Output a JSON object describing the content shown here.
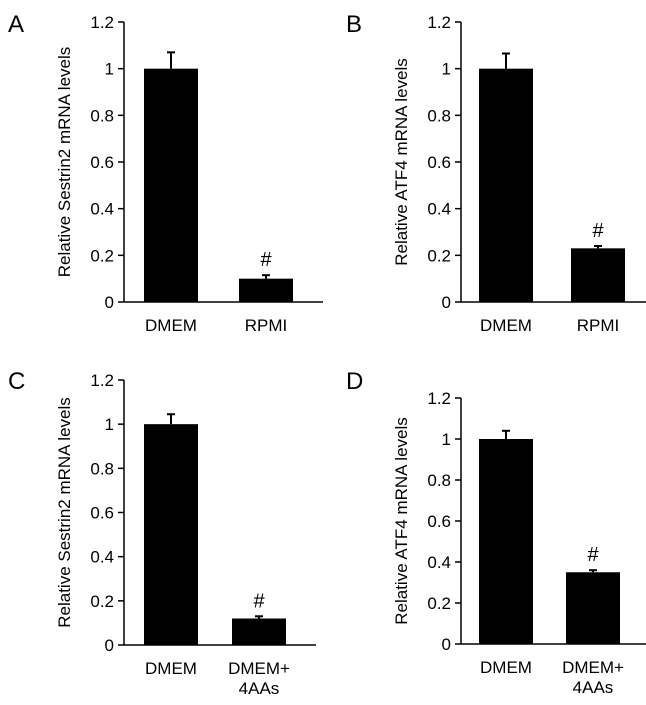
{
  "chart_data": [
    {
      "panel": "A",
      "type": "bar",
      "categories": [
        [
          "DMEM"
        ],
        [
          "RPMI"
        ]
      ],
      "values": [
        1.0,
        0.1
      ],
      "errors": [
        0.07,
        0.015
      ],
      "annotations": [
        "",
        "#"
      ],
      "ylabel": "Relative Sestrin2 mRNA levels",
      "ylim": [
        0,
        1.2
      ],
      "yticks": [
        "0",
        "0.2",
        "0.4",
        "0.6",
        "0.8",
        "1",
        "1.2"
      ],
      "bar_color": "#000000"
    },
    {
      "panel": "B",
      "type": "bar",
      "categories": [
        [
          "DMEM"
        ],
        [
          "RPMI"
        ]
      ],
      "values": [
        1.0,
        0.23
      ],
      "errors": [
        0.065,
        0.01
      ],
      "annotations": [
        "",
        "#"
      ],
      "ylabel": "Relative ATF4 mRNA levels",
      "ylim": [
        0,
        1.2
      ],
      "yticks": [
        "0",
        "0.2",
        "0.4",
        "0.6",
        "0.8",
        "1",
        "1.2"
      ],
      "bar_color": "#000000"
    },
    {
      "panel": "C",
      "type": "bar",
      "categories": [
        [
          "DMEM"
        ],
        [
          "DMEM+",
          "4AAs"
        ]
      ],
      "values": [
        1.0,
        0.12
      ],
      "errors": [
        0.045,
        0.01
      ],
      "annotations": [
        "",
        "#"
      ],
      "ylabel": "Relative Sestrin2 mRNA levels",
      "ylim": [
        0,
        1.2
      ],
      "yticks": [
        "0",
        "0.2",
        "0.4",
        "0.6",
        "0.8",
        "1",
        "1.2"
      ],
      "bar_color": "#000000"
    },
    {
      "panel": "D",
      "type": "bar",
      "categories": [
        [
          "DMEM"
        ],
        [
          "DMEM+",
          "4AAs"
        ]
      ],
      "values": [
        1.0,
        0.35
      ],
      "errors": [
        0.04,
        0.01
      ],
      "annotations": [
        "",
        "#"
      ],
      "ylabel": "Relative ATF4 mRNA levels",
      "ylim": [
        0,
        1.2
      ],
      "yticks": [
        "0",
        "0.2",
        "0.4",
        "0.6",
        "0.8",
        "1",
        "1.2"
      ],
      "bar_color": "#000000"
    }
  ]
}
